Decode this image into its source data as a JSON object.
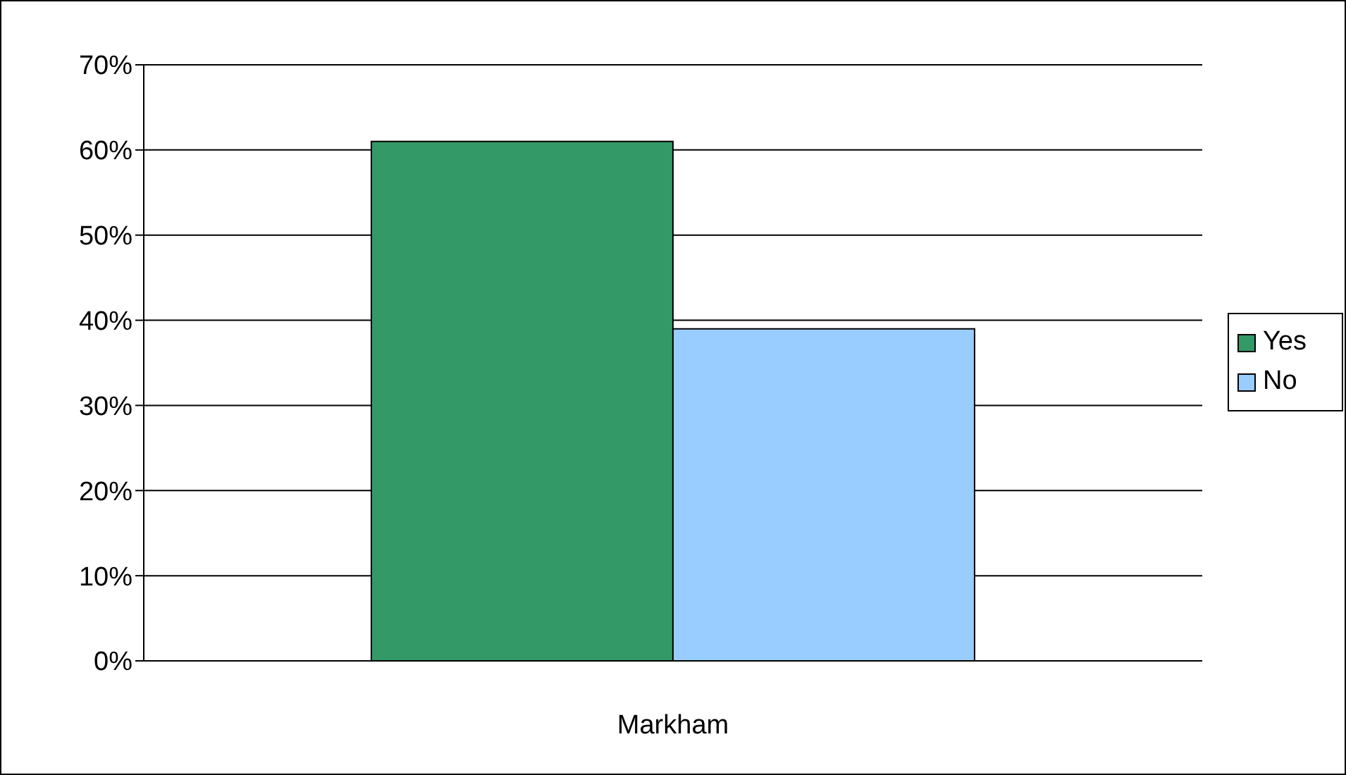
{
  "chart_data": {
    "type": "bar",
    "categories": [
      "Markham"
    ],
    "series": [
      {
        "name": "Yes",
        "color": "#339966",
        "values": [
          61
        ]
      },
      {
        "name": "No",
        "color": "#99ccff",
        "values": [
          39
        ]
      }
    ],
    "ylim": [
      0,
      70
    ],
    "yticks": [
      {
        "value": 0,
        "label": "0%"
      },
      {
        "value": 10,
        "label": "10%"
      },
      {
        "value": 20,
        "label": "20%"
      },
      {
        "value": 30,
        "label": "30%"
      },
      {
        "value": 40,
        "label": "40%"
      },
      {
        "value": 50,
        "label": "50%"
      },
      {
        "value": 60,
        "label": "60%"
      },
      {
        "value": 70,
        "label": "70%"
      }
    ],
    "grid": "y",
    "legend": "right"
  }
}
